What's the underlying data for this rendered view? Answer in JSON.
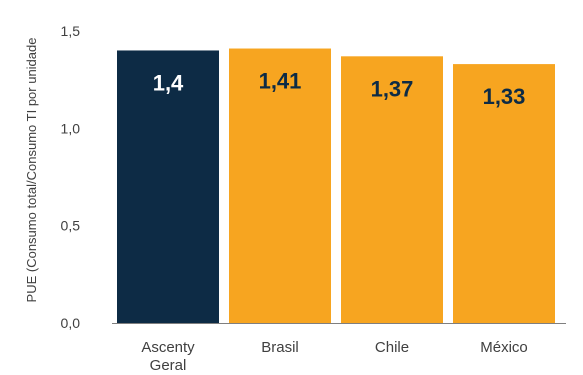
{
  "chart_data": {
    "type": "bar",
    "categories": [
      [
        "Ascenty",
        "Geral"
      ],
      [
        "Brasil"
      ],
      [
        "Chile"
      ],
      [
        "México"
      ]
    ],
    "values": [
      1.4,
      1.41,
      1.37,
      1.33
    ],
    "data_labels": [
      "1,4",
      "1,41",
      "1,37",
      "1,33"
    ],
    "ylabel": "PUE (Consumo total/Consumo TI por unidade",
    "xlabel": "",
    "title": "",
    "ylim": [
      0,
      1.5
    ],
    "yticks": [
      0,
      0.5,
      1.0,
      1.5
    ],
    "ytick_labels": [
      "0,0",
      "0,5",
      "1,0",
      "1,5"
    ],
    "grid": false,
    "colors": {
      "highlight": "#0d2b45",
      "bar": "#f7a520",
      "label_on_dark": "#ffffff",
      "label_on_light": "#0d2b45",
      "axis": "#7f7f7f"
    },
    "bar_colors": [
      "highlight",
      "bar",
      "bar",
      "bar"
    ]
  }
}
